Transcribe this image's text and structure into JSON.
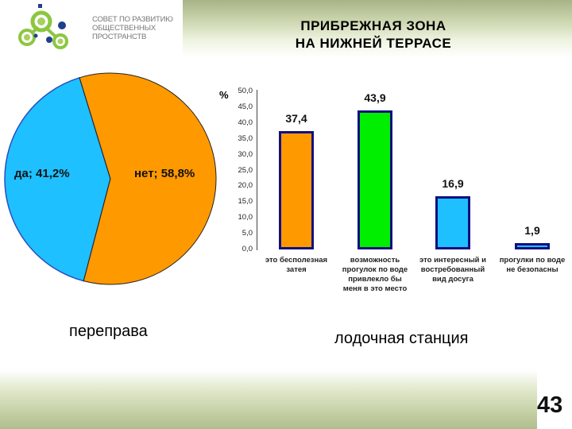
{
  "logo": {
    "lines": [
      "СОВЕТ ПО РАЗВИТИЮ",
      "ОБЩЕСТВЕННЫХ",
      "ПРОСТРАНСТВ"
    ],
    "green": "#8cc63f",
    "navy": "#1f3f8f"
  },
  "title": {
    "line1": "ПРИБРЕЖНАЯ ЗОНА",
    "line2": "НА НИЖНЕЙ ТЕРРАСЕ"
  },
  "captions": {
    "left": "переправа",
    "right": "лодочная станция"
  },
  "page_number": "43",
  "colors": {
    "orange": "#ff9900",
    "blue": "#1ec0ff",
    "green": "#00ee00",
    "bar_border": "#101080",
    "header_green": "#a7b486"
  },
  "chart_data": [
    {
      "type": "pie",
      "title": "переправа",
      "slices": [
        {
          "label": "да",
          "value": 41.2,
          "display": "да; 41,2%",
          "color": "#1ec0ff"
        },
        {
          "label": "нет",
          "value": 58.8,
          "display": "нет; 58,8%",
          "color": "#ff9900"
        }
      ]
    },
    {
      "type": "bar",
      "title": "лодочная станция",
      "ylabel": "%",
      "ylim": [
        0,
        50
      ],
      "yticks": [
        "50,0",
        "45,0",
        "40,0",
        "35,0",
        "30,0",
        "25,0",
        "20,0",
        "15,0",
        "10,0",
        "5,0",
        "0,0"
      ],
      "grid": false,
      "categories": [
        "это бесполезная затея",
        "возможность прогулок по воде привлекло бы меня в это место",
        "это интересный и востребованный вид досуга",
        "прогулки по воде не безопасны"
      ],
      "category_lines": [
        [
          "это бесполезная",
          "затея"
        ],
        [
          "возможность",
          "прогулок по воде",
          "привлекло бы",
          "меня в это место"
        ],
        [
          "это интересный и",
          "востребованный",
          "вид досуга"
        ],
        [
          "прогулки по воде",
          "не безопасны"
        ]
      ],
      "values": [
        37.4,
        43.9,
        16.9,
        1.9
      ],
      "value_labels": [
        "37,4",
        "43,9",
        "16,9",
        "1,9"
      ],
      "colors": [
        "#ff9900",
        "#00ee00",
        "#1ec0ff",
        "#1ec0ff"
      ]
    }
  ]
}
